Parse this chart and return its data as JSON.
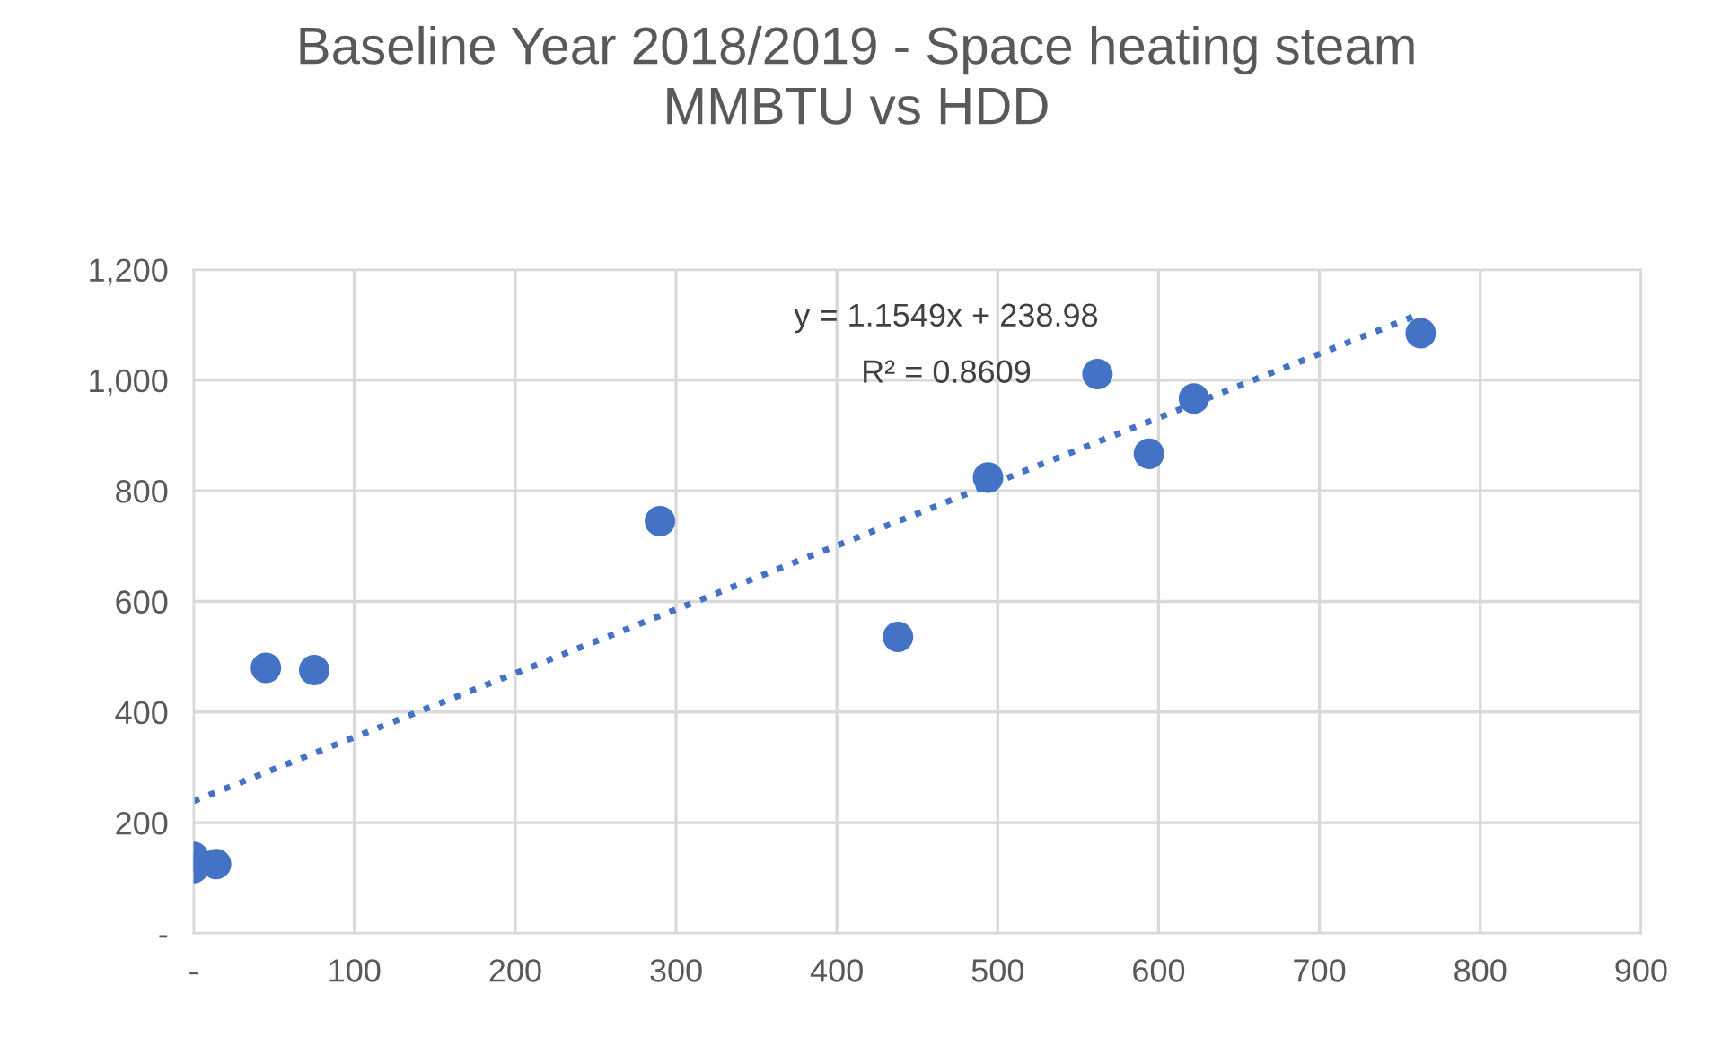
{
  "chart_data": {
    "type": "scatter",
    "title": "Baseline Year 2018/2019 - Space heating steam\nMMBTU vs HDD",
    "series": [
      {
        "color": "#4472c4",
        "marker": "circle",
        "x": [
          0,
          0,
          14,
          45,
          75,
          290,
          438,
          494,
          562,
          594,
          622,
          763
        ],
        "values": [
          138,
          118,
          125,
          480,
          476,
          745,
          536,
          824,
          1011,
          867,
          967,
          1085
        ]
      },
      {
        "type": "line",
        "color": "#4472c4",
        "line_style": "dotted",
        "marker": "none",
        "x": [
          0,
          760
        ],
        "values": [
          239,
          1117
        ]
      }
    ],
    "annotations": [
      "y = 1.1549x + 238.98",
      "R² = 0.8609"
    ],
    "xlim": [
      0,
      900
    ],
    "ylim": [
      0,
      1200
    ],
    "xticks": [
      {
        "value": 0,
        "label": "-"
      },
      100,
      200,
      300,
      400,
      500,
      600,
      700,
      800,
      900
    ],
    "yticks": [
      {
        "value": 0,
        "label": "-"
      },
      {
        "value": 200,
        "label": "200"
      },
      {
        "value": 400,
        "label": "400"
      },
      {
        "value": 600,
        "label": "600"
      },
      {
        "value": 800,
        "label": "800"
      },
      {
        "value": 1000,
        "label": "1,000"
      },
      {
        "value": 1200,
        "label": "1,200"
      }
    ],
    "grid": true,
    "legend": false
  }
}
